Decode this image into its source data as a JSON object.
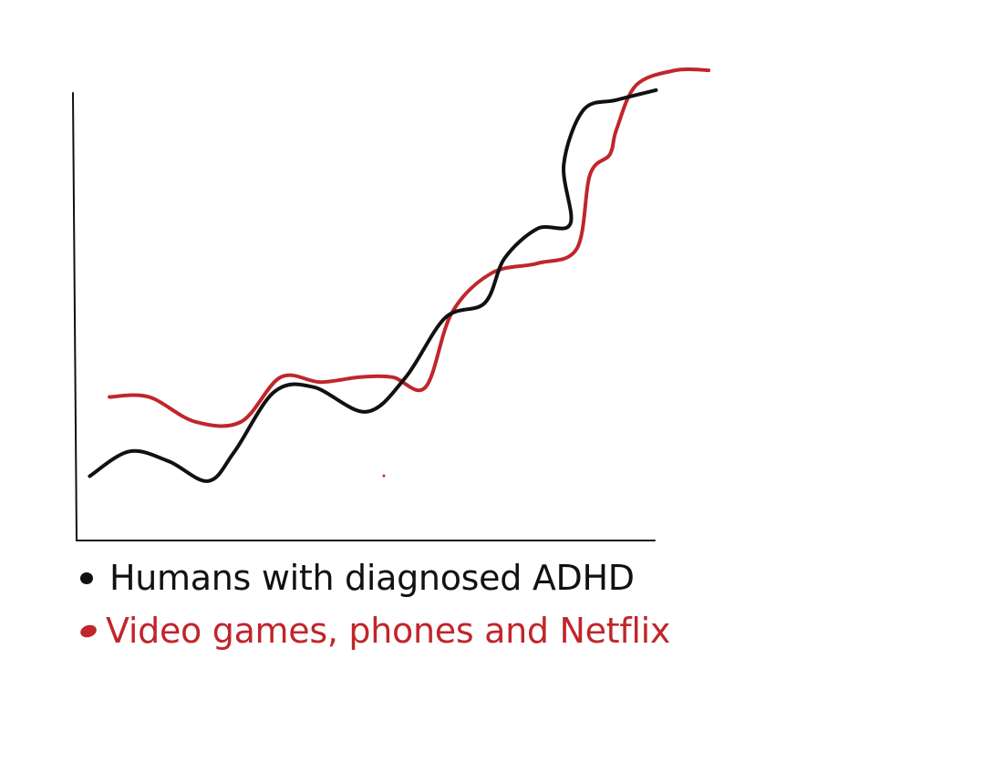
{
  "chart_data": {
    "type": "line",
    "title": "",
    "xlabel": "",
    "ylabel": "",
    "axes": {
      "x_ticks": false,
      "y_ticks": false,
      "grid": false
    },
    "xlim": [
      0,
      100
    ],
    "ylim": [
      0,
      100
    ],
    "legend_placement": "bottom-left",
    "series": [
      {
        "name": "Humans with diagnosed  ADHD",
        "color": "#111111",
        "points": [
          [
            2,
            13
          ],
          [
            8,
            18
          ],
          [
            14,
            16
          ],
          [
            20,
            12
          ],
          [
            24,
            18
          ],
          [
            30,
            30
          ],
          [
            36,
            31
          ],
          [
            44,
            26
          ],
          [
            50,
            33
          ],
          [
            56,
            45
          ],
          [
            62,
            48
          ],
          [
            65,
            57
          ],
          [
            70,
            63
          ],
          [
            75,
            64
          ],
          [
            74,
            76
          ],
          [
            77,
            87
          ],
          [
            82,
            89
          ],
          [
            88,
            91
          ]
        ]
      },
      {
        "name": "Video games, phones and Netflix",
        "color": "#c0262a",
        "points": [
          [
            5,
            29
          ],
          [
            11,
            29
          ],
          [
            18,
            24
          ],
          [
            25,
            24
          ],
          [
            31,
            33
          ],
          [
            37,
            32
          ],
          [
            43,
            33
          ],
          [
            48,
            33
          ],
          [
            53,
            31
          ],
          [
            57,
            46
          ],
          [
            63,
            54
          ],
          [
            70,
            56
          ],
          [
            76,
            59
          ],
          [
            78,
            74
          ],
          [
            81,
            78
          ],
          [
            82,
            83
          ],
          [
            85,
            92
          ],
          [
            91,
            95
          ],
          [
            96,
            95
          ]
        ]
      }
    ],
    "annotations": []
  }
}
